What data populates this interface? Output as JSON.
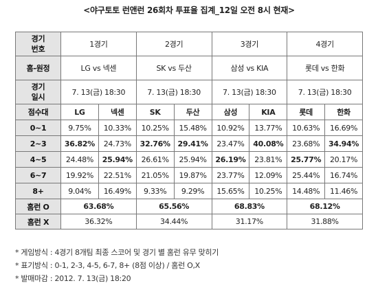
{
  "title": "<야구토토 런앤런 26회차 투표율 집계_12일 오전 8시 현재>",
  "header": {
    "game_no": [
      "경기",
      "번호"
    ],
    "home_away": "홈-원정",
    "game_time": [
      "경기",
      "일시"
    ],
    "score_band": "점수대",
    "homerun_o": "홈런 O",
    "homerun_x": "홈런 X"
  },
  "games": [
    {
      "label": "1경기",
      "matchup": "LG vs 넥센",
      "datetime": "7. 13(금) 18:30",
      "teams": [
        "LG",
        "넥센"
      ],
      "homerun_o": "63.68%",
      "homerun_x": "36.32%"
    },
    {
      "label": "2경기",
      "matchup": "SK vs 두산",
      "datetime": "7. 13(금) 18:30",
      "teams": [
        "SK",
        "두산"
      ],
      "homerun_o": "65.56%",
      "homerun_x": "34.44%"
    },
    {
      "label": "3경기",
      "matchup": "삼성 vs KIA",
      "datetime": "7. 13(금) 18:30",
      "teams": [
        "삼성",
        "KIA"
      ],
      "homerun_o": "68.83%",
      "homerun_x": "31.17%"
    },
    {
      "label": "4경기",
      "matchup": "롯데 vs 한화",
      "datetime": "7. 13(금) 18:30",
      "teams": [
        "롯데",
        "한화"
      ],
      "homerun_o": "68.12%",
      "homerun_x": "31.88%"
    }
  ],
  "score_rows": [
    {
      "band": "0~1",
      "values": [
        "9.75%",
        "10.33%",
        "10.25%",
        "15.48%",
        "10.92%",
        "13.77%",
        "10.63%",
        "16.69%"
      ],
      "bold": [
        false,
        false,
        false,
        false,
        false,
        false,
        false,
        false
      ]
    },
    {
      "band": "2~3",
      "values": [
        "36.82%",
        "24.73%",
        "32.76%",
        "29.41%",
        "23.47%",
        "40.08%",
        "23.68%",
        "34.94%"
      ],
      "bold": [
        true,
        false,
        true,
        true,
        false,
        true,
        false,
        true
      ]
    },
    {
      "band": "4~5",
      "values": [
        "24.48%",
        "25.94%",
        "26.61%",
        "25.94%",
        "26.19%",
        "23.81%",
        "25.77%",
        "20.17%"
      ],
      "bold": [
        false,
        true,
        false,
        false,
        true,
        false,
        true,
        false
      ]
    },
    {
      "band": "6~7",
      "values": [
        "19.92%",
        "22.51%",
        "21.05%",
        "19.87%",
        "23.77%",
        "12.09%",
        "25.44%",
        "16.74%"
      ],
      "bold": [
        false,
        false,
        false,
        false,
        false,
        false,
        false,
        false
      ]
    },
    {
      "band": "8+",
      "values": [
        "9.04%",
        "16.49%",
        "9.33%",
        "9.29%",
        "15.65%",
        "10.25%",
        "14.48%",
        "11.46%"
      ],
      "bold": [
        false,
        false,
        false,
        false,
        false,
        false,
        false,
        false
      ]
    }
  ],
  "notes": [
    "* 게임방식 : 4경기 8개팀 최종 스코어 및 경기 별 홈런 유무 맞히기",
    "* 표기방식 : 0-1, 2-3, 4-5, 6-7, 8+ (8점 이상) / 홈런 O,X",
    "* 발매마감 : 2012. 7. 13(금) 18:20"
  ]
}
